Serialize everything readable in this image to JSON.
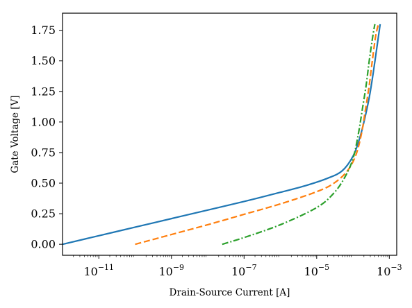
{
  "chart_data": {
    "type": "line",
    "title": "",
    "xlabel": "Drain-Source Current [A]",
    "ylabel": "Gate Voltage [V]",
    "xscale": "log",
    "xlim": [
      1e-12,
      0.0016
    ],
    "ylim": [
      -0.09,
      1.89
    ],
    "grid": false,
    "legend": "none",
    "x_ticks": [
      {
        "value": 1e-11,
        "base": "10",
        "exp": "−11"
      },
      {
        "value": 1e-09,
        "base": "10",
        "exp": "−9"
      },
      {
        "value": 1e-07,
        "base": "10",
        "exp": "−7"
      },
      {
        "value": 1e-05,
        "base": "10",
        "exp": "−5"
      },
      {
        "value": 0.001,
        "base": "10",
        "exp": "−3"
      }
    ],
    "y_ticks": [
      {
        "value": 0.0,
        "label": "0.00"
      },
      {
        "value": 0.25,
        "label": "0.25"
      },
      {
        "value": 0.5,
        "label": "0.50"
      },
      {
        "value": 0.75,
        "label": "0.75"
      },
      {
        "value": 1.0,
        "label": "1.00"
      },
      {
        "value": 1.25,
        "label": "1.25"
      },
      {
        "value": 1.5,
        "label": "1.50"
      },
      {
        "value": 1.75,
        "label": "1.75"
      }
    ],
    "series": [
      {
        "color": "#1f77b4",
        "dash": "solid",
        "points": [
          [
            1e-12,
            0.0
          ],
          [
            1e-11,
            0.07
          ],
          [
            1e-10,
            0.14
          ],
          [
            1e-09,
            0.21
          ],
          [
            1e-08,
            0.28
          ],
          [
            1e-07,
            0.35
          ],
          [
            1e-06,
            0.425
          ],
          [
            5e-06,
            0.48
          ],
          [
            2e-05,
            0.54
          ],
          [
            5e-05,
            0.6
          ],
          [
            0.0001,
            0.72
          ],
          [
            0.00015,
            0.86
          ],
          [
            0.0002,
            1.0
          ],
          [
            0.00028,
            1.2
          ],
          [
            0.00036,
            1.4
          ],
          [
            0.00045,
            1.6
          ],
          [
            0.00056,
            1.8
          ]
        ]
      },
      {
        "color": "#ff7f0e",
        "dash": "dashed",
        "points": [
          [
            1e-10,
            0.0
          ],
          [
            1e-09,
            0.08
          ],
          [
            1e-08,
            0.16
          ],
          [
            1e-07,
            0.245
          ],
          [
            1e-06,
            0.33
          ],
          [
            1e-05,
            0.43
          ],
          [
            3e-05,
            0.5
          ],
          [
            7e-05,
            0.6
          ],
          [
            0.00012,
            0.73
          ],
          [
            0.00017,
            0.9
          ],
          [
            0.00022,
            1.1
          ],
          [
            0.00028,
            1.3
          ],
          [
            0.00034,
            1.5
          ],
          [
            0.00042,
            1.7
          ],
          [
            0.0005,
            1.8
          ]
        ]
      },
      {
        "color": "#2ca02c",
        "dash": "dashdot",
        "points": [
          [
            2.5e-08,
            0.0
          ],
          [
            1e-07,
            0.055
          ],
          [
            1e-06,
            0.16
          ],
          [
            1e-05,
            0.3
          ],
          [
            3e-05,
            0.42
          ],
          [
            6e-05,
            0.55
          ],
          [
            0.0001,
            0.7
          ],
          [
            0.00014,
            0.9
          ],
          [
            0.00018,
            1.1
          ],
          [
            0.00023,
            1.3
          ],
          [
            0.00028,
            1.5
          ],
          [
            0.00035,
            1.7
          ],
          [
            0.0004,
            1.8
          ]
        ]
      }
    ]
  }
}
